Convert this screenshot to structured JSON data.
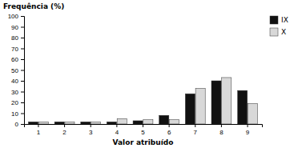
{
  "chart_data": {
    "type": "bar",
    "x_label": "Valor atribuído",
    "y_label": "Frequência (%)",
    "categories": [
      "1",
      "2",
      "3",
      "4",
      "5",
      "6",
      "7",
      "8",
      "9"
    ],
    "series": [
      {
        "name": "IX",
        "color": "#111111",
        "values": [
          2,
          2,
          2,
          2,
          3,
          8,
          28,
          40,
          31
        ]
      },
      {
        "name": "X",
        "color": "#d8d8d8",
        "values": [
          2,
          2,
          2,
          5,
          4,
          4,
          33,
          43,
          19
        ]
      }
    ],
    "ylim": [
      0,
      100
    ],
    "yticks": [
      0,
      10,
      20,
      30,
      40,
      50,
      60,
      70,
      80,
      90,
      100
    ],
    "grid": false,
    "legend": "right"
  }
}
